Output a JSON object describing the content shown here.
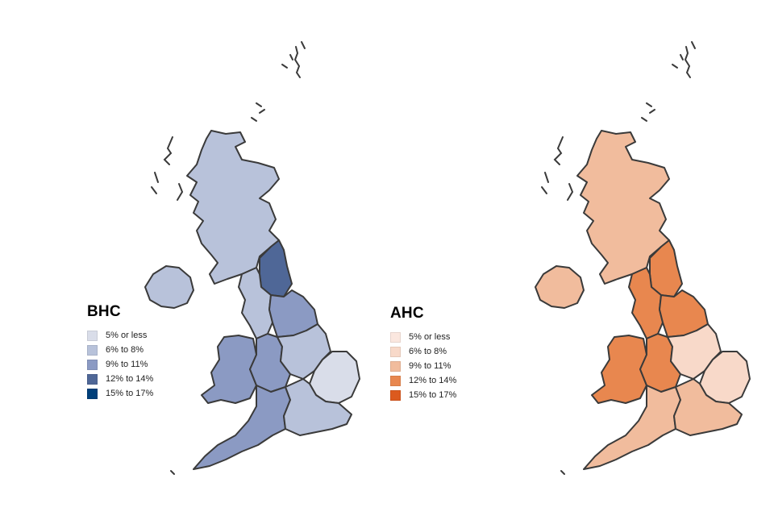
{
  "maps": [
    {
      "id": "bhc",
      "title": "BHC",
      "legend": [
        {
          "label": "5% or less",
          "color": "#d9dde9"
        },
        {
          "label": "6% to 8%",
          "color": "#b8c2da"
        },
        {
          "label": "9% to 11%",
          "color": "#8b9ac3"
        },
        {
          "label": "12% to 14%",
          "color": "#4f6797"
        },
        {
          "label": "15% to 17%",
          "color": "#003f7a"
        }
      ],
      "regions": {
        "scotland": "#b8c2da",
        "northern_ireland": "#b8c2da",
        "north_east": "#4f6797",
        "north_west": "#b8c2da",
        "yorkshire": "#8b9ac3",
        "wales": "#8b9ac3",
        "west_midlands": "#8b9ac3",
        "east_midlands": "#b8c2da",
        "east_of_england": "#d9dde9",
        "south_west": "#8b9ac3",
        "london": "#b8c2da",
        "south_east": "#b8c2da"
      }
    },
    {
      "id": "ahc",
      "title": "AHC",
      "legend": [
        {
          "label": "5% or less",
          "color": "#fbe7df"
        },
        {
          "label": "6% to 8%",
          "color": "#f8d9c9"
        },
        {
          "label": "9% to 11%",
          "color": "#f1bc9d"
        },
        {
          "label": "12% to 14%",
          "color": "#e8874f"
        },
        {
          "label": "15% to 17%",
          "color": "#dc5a1e"
        }
      ],
      "regions": {
        "scotland": "#f1bc9d",
        "northern_ireland": "#f1bc9d",
        "north_east": "#e8874f",
        "north_west": "#e8874f",
        "yorkshire": "#e8874f",
        "wales": "#e8874f",
        "west_midlands": "#e8874f",
        "east_midlands": "#f8d9c9",
        "east_of_england": "#f8d9c9",
        "south_west": "#f1bc9d",
        "london": "#e8874f",
        "south_east": "#f1bc9d"
      }
    }
  ]
}
